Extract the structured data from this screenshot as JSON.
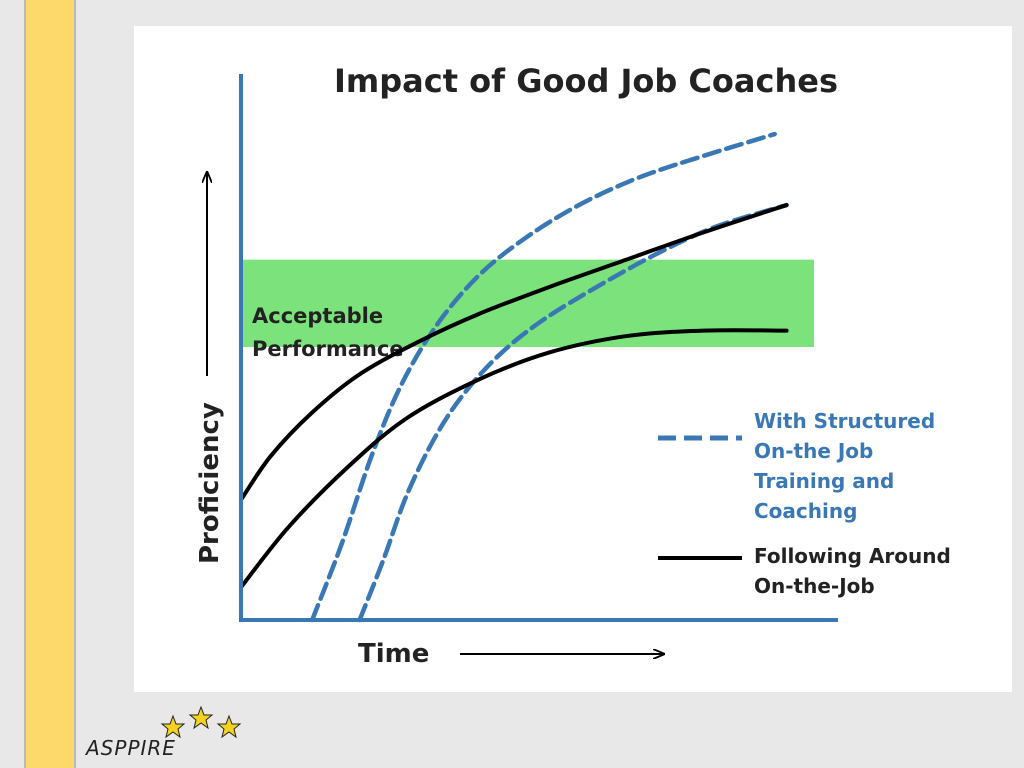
{
  "slide": {
    "stripe_color": "#fdd86a",
    "logo_text": "ASPPIRE"
  },
  "chart_data": {
    "type": "line",
    "title": "Impact of Good Job Coaches",
    "xlabel": "Time",
    "ylabel": "Proficiency",
    "xlim": [
      0,
      100
    ],
    "ylim": [
      0,
      100
    ],
    "grid": false,
    "legend_placement": "bottom-right",
    "band": {
      "label_line1": "Acceptable",
      "label_line2": "Performance",
      "y_range": [
        50,
        66
      ],
      "color": "#7ce37c"
    },
    "legend": {
      "dashed": [
        "With Structured",
        "On-the Job",
        "Training and",
        "Coaching"
      ],
      "solid": [
        "Following Around",
        "On-the-Job"
      ]
    },
    "series": [
      {
        "style": "dashed",
        "color": "#3a78b5",
        "x": [
          12,
          17,
          22,
          27,
          33,
          40,
          48,
          57,
          67,
          78,
          90
        ],
        "y": [
          0,
          14,
          30,
          43,
          54,
          63,
          70,
          76,
          81,
          85,
          89
        ]
      },
      {
        "style": "dashed",
        "color": "#3a78b5",
        "x": [
          20,
          24,
          28,
          33,
          38,
          44,
          51,
          60,
          70,
          80,
          92
        ],
        "y": [
          0,
          11,
          23,
          34,
          42,
          49,
          55,
          61,
          67,
          72,
          76
        ]
      },
      {
        "style": "solid",
        "color": "#000000",
        "x": [
          0,
          5,
          12,
          20,
          30,
          40,
          52,
          65,
          78,
          92
        ],
        "y": [
          22,
          30,
          38,
          45,
          51,
          56,
          61,
          66,
          71,
          76
        ]
      },
      {
        "style": "solid",
        "color": "#000000",
        "x": [
          0,
          8,
          18,
          28,
          40,
          52,
          65,
          78,
          92
        ],
        "y": [
          6,
          17,
          28,
          37,
          44,
          49,
          52,
          53,
          53
        ]
      }
    ]
  }
}
